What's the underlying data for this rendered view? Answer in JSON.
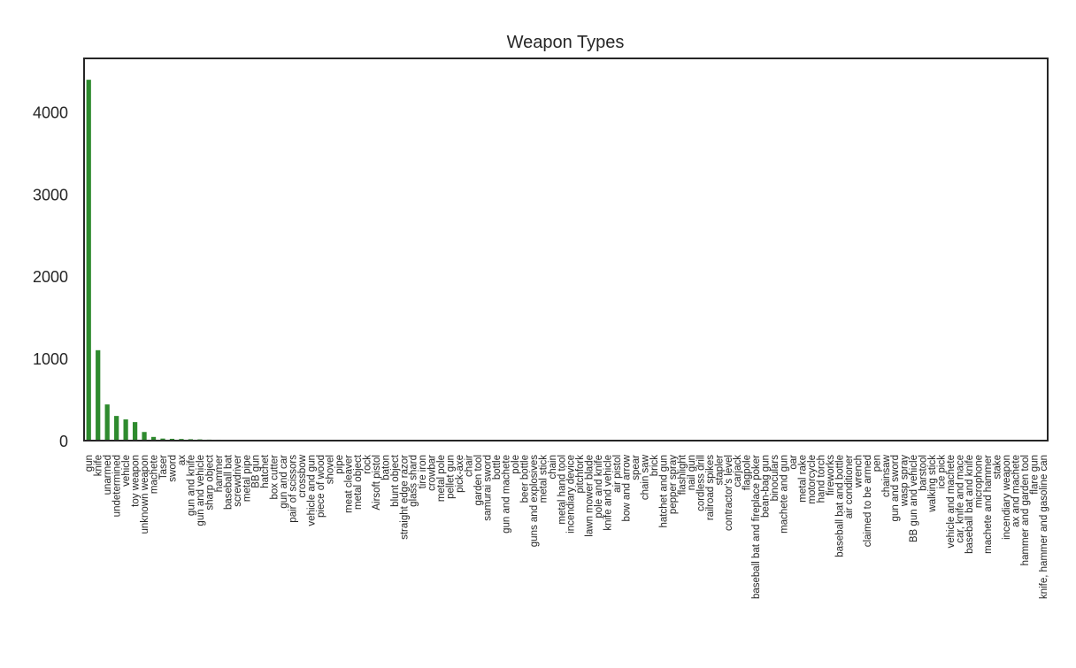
{
  "chart_data": {
    "type": "bar",
    "title": "Weapon Types",
    "xlabel": "",
    "ylabel": "",
    "ylim": [
      0,
      4650
    ],
    "yticks": [
      0,
      1000,
      2000,
      3000,
      4000
    ],
    "grid": false,
    "legend": "none",
    "bar_color": "#2e8b2e",
    "categories": [
      "gun",
      "knife",
      "unarmed",
      "undetermined",
      "vehicle",
      "toy weapon",
      "unknown weapon",
      "machete",
      "Taser",
      "sword",
      "ax",
      "gun and knife",
      "gun and vehicle",
      "sharp object",
      "hammer",
      "baseball bat",
      "screwdriver",
      "metal pipe",
      "BB gun",
      "hatchet",
      "box cutter",
      "gun and car",
      "pair of scissors",
      "crossbow",
      "vehicle and gun",
      "piece of wood",
      "shovel",
      "pipe",
      "meat cleaver",
      "metal object",
      "rock",
      "Airsoft pistol",
      "baton",
      "blunt object",
      "straight edge razor",
      "glass shard",
      "tire iron",
      "crowbar",
      "metal pole",
      "pellet gun",
      "pick-axe",
      "chair",
      "garden tool",
      "samurai sword",
      "bottle",
      "gun and machete",
      "pole",
      "beer bottle",
      "guns and explosives",
      "metal stick",
      "chain",
      "metal hand tool",
      "incendiary device",
      "pitchfork",
      "lawn mower blade",
      "pole and knife",
      "knife and vehicle",
      "air pistol",
      "bow and arrow",
      "spear",
      "chain saw",
      "brick",
      "hatchet and gun",
      "pepper spray",
      "flashlight",
      "nail gun",
      "cordless drill",
      "railroad spikes",
      "stapler",
      "contractor's level",
      "carjack",
      "flagpole",
      "baseball bat and fireplace poker",
      "bean-bag gun",
      "binoculars",
      "machete and gun",
      "oar",
      "metal rake",
      "motorcycle",
      "hand torch",
      "fireworks",
      "baseball bat and bottle",
      "air conditioner",
      "wrench",
      "claimed to be armed",
      "pen",
      "chainsaw",
      "gun and sword",
      "wasp spray",
      "BB gun and vehicle",
      "barstool",
      "walking stick",
      "ice pick",
      "vehicle and machete",
      "car, knife and mace",
      "baseball bat and knife",
      "microphone",
      "machete and hammer",
      "stake",
      "incendiary weapon",
      "ax and machete",
      "hammer and garden tool",
      "flare gun",
      "knife, hammer and gasoline can"
    ],
    "values": [
      4390,
      1100,
      440,
      300,
      258,
      225,
      105,
      45,
      25,
      22,
      20,
      17,
      15,
      12,
      11,
      10,
      9,
      9,
      8,
      7,
      6,
      6,
      6,
      5,
      5,
      5,
      4,
      4,
      4,
      4,
      4,
      3,
      3,
      3,
      3,
      3,
      3,
      2,
      2,
      2,
      2,
      2,
      2,
      2,
      2,
      2,
      2,
      2,
      2,
      2,
      1,
      1,
      1,
      1,
      1,
      1,
      1,
      1,
      1,
      1,
      1,
      1,
      1,
      1,
      1,
      1,
      1,
      1,
      1,
      1,
      1,
      1,
      1,
      1,
      1,
      1,
      1,
      1,
      1,
      1,
      1,
      1,
      1,
      1,
      1,
      1,
      1,
      1,
      1,
      1,
      1,
      1,
      1,
      1,
      1,
      1,
      1,
      1,
      1,
      1,
      1,
      1,
      1,
      1
    ]
  }
}
